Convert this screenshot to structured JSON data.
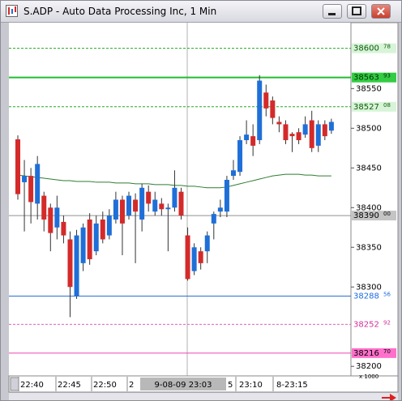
{
  "window": {
    "title": "S.ADP - Auto Data Processing Inc, 1 Min"
  },
  "chart_data": {
    "type": "candlestick",
    "ylim": [
      38189,
      38632
    ],
    "yticks": [
      38200,
      38300,
      38350,
      38400,
      38450,
      38500,
      38550
    ],
    "scale_label": "x 1000",
    "up_color": "#1f6fd8",
    "down_color": "#d42a2a",
    "open": [
      38486,
      38432,
      38440,
      38405,
      38415,
      38400,
      38375,
      38382,
      38360,
      38288,
      38330,
      38385,
      38345,
      38385,
      38365,
      38385,
      38410,
      38390,
      38410,
      38385,
      38420,
      38395,
      38405,
      38398,
      38400,
      38420,
      38365,
      38320,
      38345,
      38345,
      38380,
      38395,
      38395,
      38440,
      38445,
      38485,
      38490,
      38485,
      38545,
      38535,
      38508,
      38505,
      38493,
      38495,
      38492,
      38510,
      38478,
      38505,
      38497
    ],
    "high": [
      38491,
      38460,
      38450,
      38465,
      38420,
      38405,
      38415,
      38390,
      38370,
      38372,
      38380,
      38393,
      38390,
      38395,
      38398,
      38420,
      38415,
      38420,
      38418,
      38430,
      38428,
      38420,
      38412,
      38405,
      38447,
      38425,
      38375,
      38355,
      38350,
      38370,
      38395,
      38410,
      38440,
      38460,
      38490,
      38510,
      38505,
      38567,
      38555,
      38540,
      38515,
      38510,
      38495,
      38500,
      38515,
      38522,
      38510,
      38510,
      38512
    ],
    "low": [
      38410,
      38370,
      38380,
      38385,
      38370,
      38345,
      38360,
      38355,
      38262,
      38285,
      38320,
      38328,
      38340,
      38355,
      38360,
      38380,
      38340,
      38385,
      38330,
      38370,
      38395,
      38390,
      38390,
      38345,
      38395,
      38385,
      38308,
      38315,
      38322,
      38330,
      38360,
      38388,
      38388,
      38435,
      38440,
      38480,
      38465,
      38480,
      38515,
      38505,
      38495,
      38480,
      38470,
      38480,
      38488,
      38470,
      38470,
      38485,
      38493
    ],
    "close": [
      38417,
      38440,
      38407,
      38455,
      38385,
      38368,
      38400,
      38365,
      38300,
      38365,
      38375,
      38335,
      38380,
      38360,
      38390,
      38410,
      38380,
      38415,
      38395,
      38425,
      38405,
      38410,
      38398,
      38400,
      38425,
      38390,
      38310,
      38350,
      38330,
      38365,
      38392,
      38400,
      38435,
      38447,
      38485,
      38492,
      38478,
      38560,
      38525,
      38513,
      38505,
      38485,
      38490,
      38485,
      38505,
      38475,
      38505,
      38490,
      38508
    ],
    "moving_average": {
      "color": "#2e7d32",
      "values": [
        38441,
        38440,
        38439,
        38438,
        38437,
        38436,
        38435,
        38434,
        38434,
        38433,
        38433,
        38433,
        38432,
        38432,
        38432,
        38431,
        38431,
        38431,
        38430,
        38430,
        38430,
        38429,
        38429,
        38429,
        38428,
        38428,
        38427,
        38427,
        38426,
        38425,
        38425,
        38425,
        38426,
        38428,
        38430,
        38432,
        38434,
        38436,
        38438,
        38440,
        38441,
        38442,
        38442,
        38442,
        38441,
        38441,
        38440,
        38440,
        38440
      ]
    },
    "levels": [
      {
        "value": 38600.78,
        "label": "38600",
        "fraction": "78",
        "color": "#22aa22",
        "style": "dashed",
        "label_fill": "#d8f4d8",
        "label_color": "#0a5a0a"
      },
      {
        "value": 38563.93,
        "label": "38563",
        "fraction": "93",
        "color": "#22bb33",
        "style": "solid",
        "label_fill": "#33cc44",
        "label_color": "#003300"
      },
      {
        "value": 38527.08,
        "label": "38527",
        "fraction": "08",
        "color": "#22aa22",
        "style": "dashed",
        "label_fill": "#d8f4d8",
        "label_color": "#0a5a0a"
      },
      {
        "value": 38390.0,
        "label": "38390",
        "fraction": "00",
        "color": "#909090",
        "style": "solid",
        "label_fill": "#c4c4c4",
        "label_color": "#000000"
      },
      {
        "value": 38288.56,
        "label": "38288",
        "fraction": "56",
        "color": "#2a6fd0",
        "style": "solid",
        "label_fill": "#ffffff",
        "label_color": "#1e6be0"
      },
      {
        "value": 38252.92,
        "label": "38252",
        "fraction": "92",
        "color": "#e060c0",
        "style": "dashed",
        "label_fill": "#ffffff",
        "label_color": "#d0309a"
      },
      {
        "value": 38216.7,
        "label": "38216",
        "fraction": "70",
        "color": "#f040b0",
        "style": "solid",
        "label_fill": "#ff70cc",
        "label_color": "#000000"
      }
    ],
    "x_labels": [
      "22:40",
      "22:45",
      "22:50",
      "2",
      "5",
      "23:10",
      "8-23:15"
    ],
    "cursor_label": "9-08-09 23:03"
  }
}
